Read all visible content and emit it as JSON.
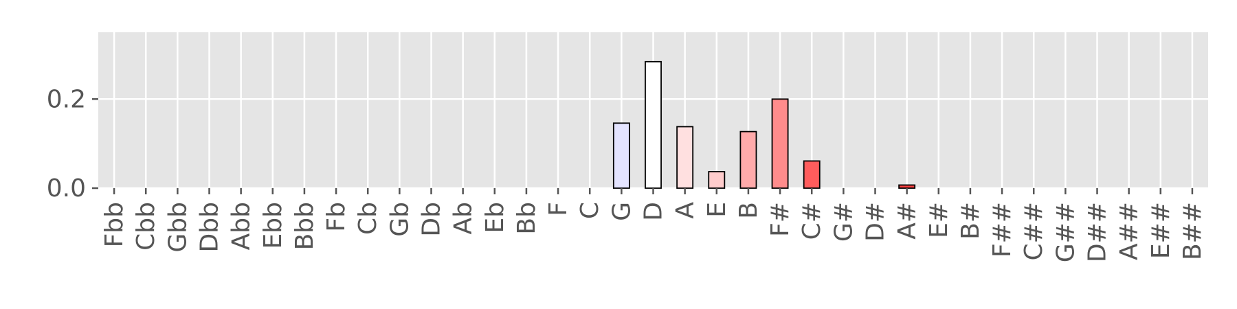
{
  "chart_data": {
    "type": "bar",
    "title": "",
    "xlabel": "",
    "ylabel": "",
    "ylim": [
      0,
      0.35
    ],
    "yticks": [
      0.0,
      0.2
    ],
    "ytick_labels": [
      "0.0",
      "0.2"
    ],
    "grid": true,
    "categories": [
      "Fbb",
      "Cbb",
      "Gbb",
      "Dbb",
      "Abb",
      "Ebb",
      "Bbb",
      "Fb",
      "Cb",
      "Gb",
      "Db",
      "Ab",
      "Eb",
      "Bb",
      "F",
      "C",
      "G",
      "D",
      "A",
      "E",
      "B",
      "F#",
      "C#",
      "G#",
      "D#",
      "A#",
      "E#",
      "B#",
      "F##",
      "C##",
      "G##",
      "D##",
      "A##",
      "E##",
      "B##"
    ],
    "values": [
      0,
      0,
      0,
      0,
      0,
      0,
      0,
      0,
      0,
      0,
      0,
      0,
      0,
      0,
      0,
      0,
      0.146,
      0.284,
      0.138,
      0.037,
      0.127,
      0.2,
      0.061,
      0,
      0,
      0.007,
      0,
      0,
      0,
      0,
      0,
      0,
      0,
      0,
      0
    ],
    "bar_colors": [
      "#ffffff",
      "#ffffff",
      "#ffffff",
      "#ffffff",
      "#ffffff",
      "#ffffff",
      "#ffffff",
      "#ffffff",
      "#ffffff",
      "#ffffff",
      "#ffffff",
      "#ffffff",
      "#ffffff",
      "#ffffff",
      "#ffffff",
      "#ffffff",
      "#e4e4ff",
      "#ffffff",
      "#ffe0e0",
      "#ffcccc",
      "#ffaaaa",
      "#ff8c8c",
      "#ff5c5c",
      "#ffffff",
      "#ffffff",
      "#ff4040",
      "#ffffff",
      "#ffffff",
      "#ffffff",
      "#ffffff",
      "#ffffff",
      "#ffffff",
      "#ffffff",
      "#ffffff",
      "#ffffff"
    ],
    "plot_background": "#e5e5e5",
    "grid_color": "#ffffff"
  }
}
